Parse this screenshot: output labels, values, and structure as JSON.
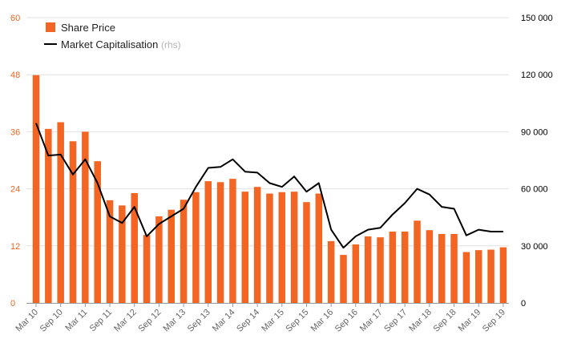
{
  "chart_data": {
    "type": "bar",
    "colors": {
      "bar": "#f26522",
      "line": "#000000",
      "grid": "#e0e0e0",
      "left_ticks": "#f26522",
      "right_ticks": "#000000",
      "x_ticks": "#666666"
    },
    "x_ticks": [
      "Mar 10",
      "Sep 10",
      "Mar 11",
      "Sep 11",
      "Mar 12",
      "Sep 12",
      "Mar 13",
      "Sep 13",
      "Mar 14",
      "Sep 14",
      "Mar 15",
      "Sep 15",
      "Mar 16",
      "Sep 16",
      "Mar 17",
      "Sep 17",
      "Mar 18",
      "Sep 18",
      "Mar 19",
      "Sep 19"
    ],
    "y_left": {
      "ticks": [
        "0",
        "12",
        "24",
        "36",
        "48",
        "60"
      ],
      "range": [
        0,
        60
      ]
    },
    "y_right": {
      "ticks": [
        "0",
        "30 000",
        "60 000",
        "90 000",
        "120 000",
        "150 000"
      ],
      "range": [
        0,
        150000
      ]
    },
    "legend": {
      "position": "top-left",
      "bar_label": "Share Price",
      "line_label": "Market Capitalisation",
      "line_note": "(rhs)"
    },
    "grid": "horizontal",
    "series": [
      {
        "name": "Share Price",
        "type": "bar",
        "axis": "left",
        "values": [
          47.9,
          36.6,
          38.0,
          34.0,
          36.0,
          29.8,
          21.6,
          20.5,
          23.1,
          14.3,
          18.2,
          19.6,
          21.7,
          23.3,
          25.6,
          25.4,
          26.1,
          23.4,
          24.4,
          23.0,
          23.3,
          23.4,
          21.2,
          23.0,
          13.0,
          10.1,
          12.3,
          14.0,
          13.8,
          15.0,
          15.0,
          17.3,
          15.3,
          14.5,
          14.5,
          10.7,
          11.1,
          11.2,
          11.7
        ]
      },
      {
        "name": "Market Capitalisation",
        "type": "line",
        "axis": "right",
        "values": [
          94500,
          77500,
          78000,
          67500,
          75500,
          63000,
          45500,
          42000,
          50500,
          35000,
          41500,
          45500,
          49500,
          61000,
          71000,
          71500,
          75500,
          69000,
          68500,
          63000,
          61000,
          66500,
          58500,
          63000,
          38500,
          29000,
          35000,
          38500,
          39500,
          46500,
          52500,
          60000,
          57000,
          50500,
          49500,
          35500,
          38500,
          37500,
          37500
        ]
      }
    ]
  }
}
